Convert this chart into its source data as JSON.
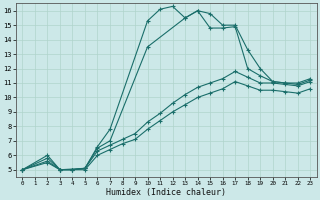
{
  "xlabel": "Humidex (Indice chaleur)",
  "bg_color": "#cce8e8",
  "line_color": "#1a6e6a",
  "xlim": [
    -0.5,
    23.5
  ],
  "ylim": [
    4.5,
    16.5
  ],
  "xticks": [
    0,
    1,
    2,
    3,
    4,
    5,
    6,
    7,
    8,
    9,
    10,
    11,
    12,
    13,
    14,
    15,
    16,
    17,
    18,
    19,
    20,
    21,
    22,
    23
  ],
  "yticks": [
    5,
    6,
    7,
    8,
    9,
    10,
    11,
    12,
    13,
    14,
    15,
    16
  ],
  "series": [
    {
      "x": [
        0,
        2,
        3,
        5,
        6,
        7,
        10,
        11,
        12,
        13,
        14,
        15,
        16,
        17,
        18,
        19,
        20,
        21,
        22,
        23
      ],
      "y": [
        5,
        5.5,
        5.0,
        5.1,
        6.6,
        7.8,
        15.3,
        16.1,
        16.3,
        15.5,
        16.0,
        14.8,
        14.8,
        14.9,
        12.0,
        11.5,
        11.1,
        11.0,
        11.0,
        11.3
      ]
    },
    {
      "x": [
        0,
        2,
        3,
        4,
        5,
        6,
        7,
        10,
        13,
        14,
        15,
        16,
        17,
        18,
        19,
        20,
        21,
        22,
        23
      ],
      "y": [
        5,
        6.0,
        5.0,
        5.0,
        5.1,
        6.5,
        7.0,
        13.5,
        15.5,
        16.0,
        15.8,
        15.0,
        15.0,
        13.3,
        12.0,
        11.1,
        11.0,
        10.9,
        11.2
      ]
    },
    {
      "x": [
        0,
        2,
        3,
        4,
        5,
        6,
        7,
        8,
        9,
        10,
        11,
        12,
        13,
        14,
        15,
        16,
        17,
        18,
        19,
        20,
        21,
        22,
        23
      ],
      "y": [
        5,
        5.8,
        5.0,
        5.0,
        5.1,
        6.3,
        6.7,
        7.1,
        7.5,
        8.3,
        8.9,
        9.6,
        10.2,
        10.7,
        11.0,
        11.3,
        11.8,
        11.4,
        11.0,
        11.0,
        10.9,
        10.8,
        11.1
      ]
    },
    {
      "x": [
        0,
        2,
        3,
        4,
        5,
        6,
        7,
        8,
        9,
        10,
        11,
        12,
        13,
        14,
        15,
        16,
        17,
        18,
        19,
        20,
        21,
        22,
        23
      ],
      "y": [
        5,
        5.6,
        5.0,
        5.0,
        5.0,
        6.0,
        6.4,
        6.8,
        7.1,
        7.8,
        8.4,
        9.0,
        9.5,
        10.0,
        10.3,
        10.6,
        11.1,
        10.8,
        10.5,
        10.5,
        10.4,
        10.3,
        10.6
      ]
    }
  ]
}
